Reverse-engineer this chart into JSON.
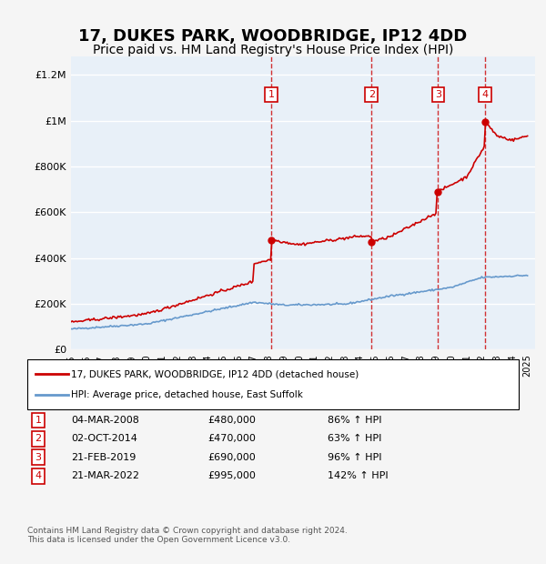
{
  "title": "17, DUKES PARK, WOODBRIDGE, IP12 4DD",
  "subtitle": "Price paid vs. HM Land Registry's House Price Index (HPI)",
  "title_fontsize": 13,
  "subtitle_fontsize": 10,
  "ylabel_ticks": [
    "£0",
    "£200K",
    "£400K",
    "£600K",
    "£800K",
    "£1M",
    "£1.2M"
  ],
  "ytick_values": [
    0,
    200000,
    400000,
    600000,
    800000,
    1000000,
    1200000
  ],
  "ylim": [
    0,
    1280000
  ],
  "xlim_start": 1995.0,
  "xlim_end": 2025.5,
  "bg_color": "#ddeeff",
  "chart_bg": "#e8f0f8",
  "grid_color": "#ffffff",
  "sale_dates_num": [
    2008.17,
    2014.75,
    2019.13,
    2022.22
  ],
  "sale_prices": [
    480000,
    470000,
    690000,
    995000
  ],
  "sale_labels": [
    "1",
    "2",
    "3",
    "4"
  ],
  "sale_dates_str": [
    "04-MAR-2008",
    "02-OCT-2014",
    "21-FEB-2019",
    "21-MAR-2022"
  ],
  "sale_prices_str": [
    "£480,000",
    "£470,000",
    "£690,000",
    "£995,000"
  ],
  "sale_hpi_str": [
    "86% ↑ HPI",
    "63% ↑ HPI",
    "96% ↑ HPI",
    "142% ↑ HPI"
  ],
  "legend_line1": "17, DUKES PARK, WOODBRIDGE, IP12 4DD (detached house)",
  "legend_line2": "HPI: Average price, detached house, East Suffolk",
  "footer": "Contains HM Land Registry data © Crown copyright and database right 2024.\nThis data is licensed under the Open Government Licence v3.0.",
  "red_color": "#cc0000",
  "blue_color": "#6699cc",
  "marker_box_color": "#cc0000"
}
